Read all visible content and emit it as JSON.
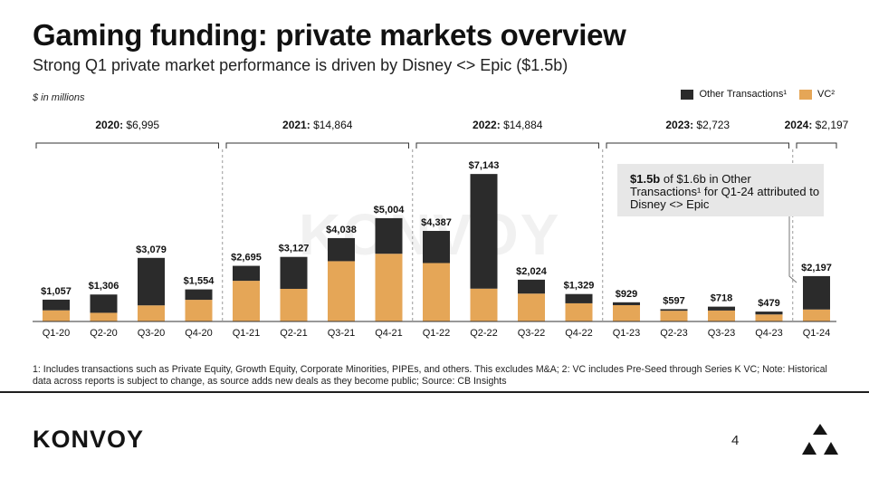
{
  "title": "Gaming funding: private markets overview",
  "subtitle": "Strong Q1 private market performance is driven by Disney <> Epic ($1.5b)",
  "unit_label": "$ in millions",
  "legend": [
    {
      "label": "Other Transactions¹",
      "color": "#2b2b2b"
    },
    {
      "label": "VC²",
      "color": "#e5a657"
    }
  ],
  "chart_data": {
    "type": "bar",
    "stacked": true,
    "categories": [
      "Q1-20",
      "Q2-20",
      "Q3-20",
      "Q4-20",
      "Q1-21",
      "Q2-21",
      "Q3-21",
      "Q4-21",
      "Q1-22",
      "Q2-22",
      "Q3-22",
      "Q4-22",
      "Q1-23",
      "Q2-23",
      "Q3-23",
      "Q4-23",
      "Q1-24"
    ],
    "series": [
      {
        "name": "VC²",
        "color": "#e5a657",
        "values": [
          540,
          420,
          780,
          1050,
          1970,
          1580,
          2920,
          3280,
          2830,
          1590,
          1350,
          880,
          790,
          520,
          530,
          340,
          580
        ]
      },
      {
        "name": "Other Transactions¹",
        "color": "#2b2b2b",
        "values": [
          517,
          886,
          2299,
          504,
          725,
          1547,
          1118,
          1724,
          1557,
          5553,
          674,
          449,
          139,
          77,
          188,
          139,
          1617
        ]
      }
    ],
    "totals": [
      1057,
      1306,
      3079,
      1554,
      2695,
      3127,
      4038,
      5004,
      4387,
      7143,
      2024,
      1329,
      929,
      597,
      718,
      479,
      2197
    ],
    "total_labels": [
      "$1,057",
      "$1,306",
      "$3,079",
      "$1,554",
      "$2,695",
      "$3,127",
      "$4,038",
      "$5,004",
      "$4,387",
      "$7,143",
      "$2,024",
      "$1,329",
      "$929",
      "$597",
      "$718",
      "$479",
      "$2,197"
    ],
    "ylim": [
      0,
      7500
    ],
    "grid": false,
    "years": [
      {
        "label": "2020:",
        "value": "$6,995",
        "start": 0,
        "end": 3
      },
      {
        "label": "2021:",
        "value": "$14,864",
        "start": 4,
        "end": 7
      },
      {
        "label": "2022:",
        "value": "$14,884",
        "start": 8,
        "end": 11
      },
      {
        "label": "2023:",
        "value": "$2,723",
        "start": 12,
        "end": 15
      },
      {
        "label": "2024:",
        "value": "$2,197",
        "start": 16,
        "end": 16
      }
    ]
  },
  "callout": {
    "bold": "$1.5b",
    "text": " of $1.6b in Other Transactions¹ for Q1-24 attributed to Disney <> Epic"
  },
  "watermark": "KONVOY",
  "footnote": "1: Includes transactions such as Private Equity, Growth Equity, Corporate Minorities, PIPEs, and others. This excludes M&A; 2: VC includes Pre-Seed through Series K VC; Note: Historical data across reports is subject to change, as source adds new deals as they become public; Source: CB Insights",
  "logo": "KONVOY",
  "page_number": "4"
}
